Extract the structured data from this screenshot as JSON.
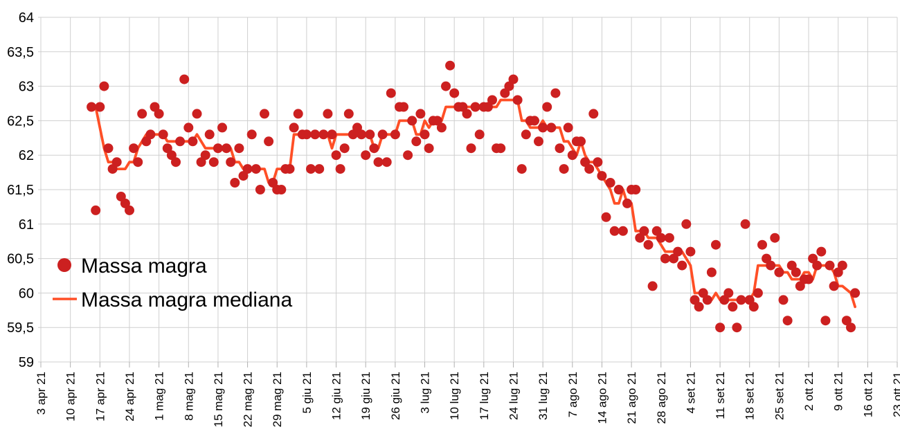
{
  "chart_data": {
    "type": "scatter",
    "title": "",
    "locale": "it-IT",
    "decimal_separator": ",",
    "grid": true,
    "grid_color": "#cfcfcf",
    "tick_color": "#b0b0b0",
    "text_color": "#000000",
    "background_color": "#ffffff",
    "legend_position": "inside-left-middle",
    "y_axis": {
      "min": 59,
      "max": 64,
      "step": 0.5,
      "tick_labels": [
        "64",
        "63,5",
        "63",
        "62,5",
        "62",
        "61,5",
        "61",
        "60,5",
        "60",
        "59,5",
        "59"
      ]
    },
    "x_axis": {
      "days_per_tick": 7,
      "tick_labels": [
        "3 apr 21",
        "10 apr 21",
        "17 apr 21",
        "24 apr 21",
        "1 mag 21",
        "8 mag 21",
        "15 mag 21",
        "22 mag 21",
        "29 mag 21",
        "5 giu 21",
        "12 giu 21",
        "19 giu 21",
        "26 giu 21",
        "3 lug 21",
        "10 lug 21",
        "17 lug 21",
        "24 lug 21",
        "31 lug 21",
        "7 ago 21",
        "14 ago 21",
        "21 ago 21",
        "28 ago 21",
        "4 set 21",
        "11 set 21",
        "18 set 21",
        "25 set 21",
        "2 ott 21",
        "9 ott 21",
        "16 ott 21",
        "23 ott 21"
      ]
    },
    "series": [
      {
        "name": "Massa magra",
        "type": "scatter",
        "color": "#cc2020",
        "marker_radius": 7,
        "first_point_label": "15 apr 21",
        "start_day_offset_from_first_tick": 12,
        "interval_days": 1,
        "values": [
          62.7,
          61.2,
          62.7,
          63.0,
          62.1,
          61.8,
          61.9,
          61.4,
          61.3,
          61.2,
          62.1,
          61.9,
          62.6,
          62.2,
          62.3,
          62.7,
          62.6,
          62.3,
          62.1,
          62.0,
          61.9,
          62.2,
          63.1,
          62.4,
          62.2,
          62.6,
          61.9,
          62.0,
          62.3,
          61.9,
          62.1,
          62.4,
          62.1,
          61.9,
          61.6,
          62.1,
          61.7,
          61.8,
          62.3,
          61.8,
          61.5,
          62.6,
          62.2,
          61.6,
          61.5,
          61.5,
          61.8,
          61.8,
          62.4,
          62.6,
          62.3,
          62.3,
          61.8,
          62.3,
          61.8,
          62.3,
          62.6,
          62.3,
          62.0,
          61.8,
          62.1,
          62.6,
          62.3,
          62.4,
          62.3,
          62.0,
          62.3,
          62.1,
          61.9,
          62.3,
          61.9,
          62.9,
          62.3,
          62.7,
          62.7,
          62.0,
          62.5,
          62.2,
          62.6,
          62.3,
          62.1,
          62.5,
          62.5,
          62.4,
          63.0,
          63.3,
          62.9,
          62.7,
          62.7,
          62.6,
          62.1,
          62.7,
          62.3,
          62.7,
          62.7,
          62.8,
          62.1,
          62.1,
          62.9,
          63.0,
          63.1,
          62.8,
          61.8,
          62.3,
          62.5,
          62.5,
          62.2,
          62.4,
          62.7,
          62.4,
          62.9,
          62.1,
          61.8,
          62.4,
          62.0,
          62.2,
          62.2,
          61.9,
          61.8,
          62.6,
          61.9,
          61.7,
          61.1,
          61.6,
          60.9,
          61.5,
          60.9,
          61.3,
          61.5,
          61.5,
          60.8,
          60.9,
          60.7,
          60.1,
          60.9,
          60.8,
          60.5,
          60.8,
          60.5,
          60.6,
          60.4,
          61.0,
          60.6,
          59.9,
          59.8,
          60.0,
          59.9,
          60.3,
          60.7,
          59.5,
          59.9,
          60.0,
          59.8,
          59.5,
          59.9,
          61.0,
          59.9,
          59.8,
          60.0,
          60.7,
          60.5,
          60.4,
          60.8,
          60.3,
          59.9,
          59.6,
          60.4,
          60.3,
          60.1,
          60.2,
          60.2,
          60.5,
          60.4,
          60.6,
          59.6,
          60.4,
          60.1,
          60.3,
          60.4,
          59.6,
          59.5,
          60.0
        ]
      },
      {
        "name": "Massa magra mediana",
        "type": "line",
        "color": "#ff4f26",
        "line_width": 3.8,
        "derivation": "rolling-median-7-centered"
      }
    ]
  },
  "legend": {
    "items": [
      {
        "label": "Massa magra"
      },
      {
        "label": "Massa magra mediana"
      }
    ]
  }
}
